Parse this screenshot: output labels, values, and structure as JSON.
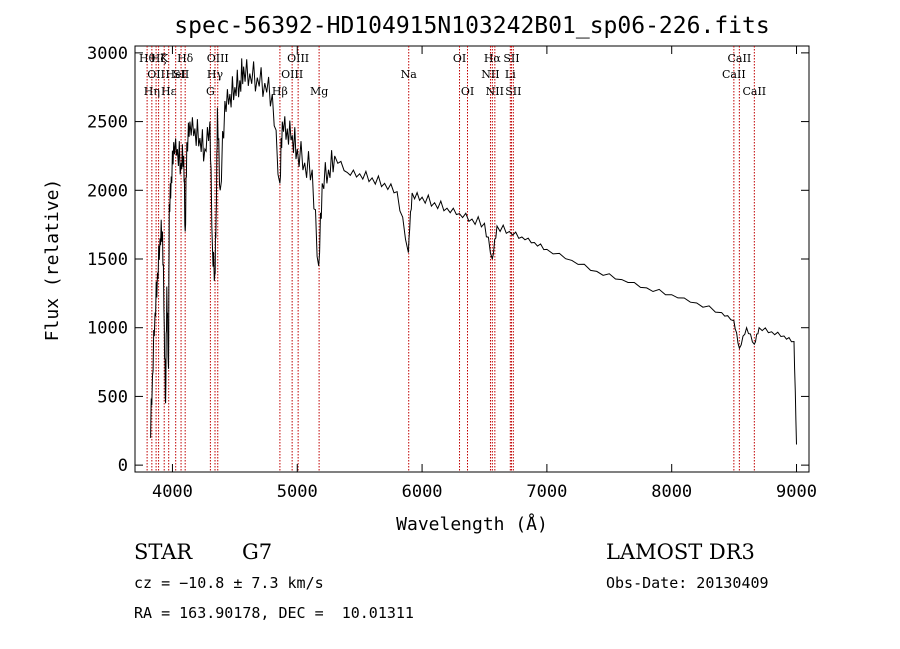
{
  "chart_data": {
    "type": "line",
    "title": "spec-56392-HD104915N103242B01_sp06-226.fits",
    "xlabel": "Wavelength (Å)",
    "ylabel": "Flux (relative)",
    "xlim": [
      3700,
      9100
    ],
    "ylim": [
      -50,
      3050
    ],
    "xticks": [
      4000,
      5000,
      6000,
      7000,
      8000,
      9000
    ],
    "yticks": [
      0,
      500,
      1000,
      1500,
      2000,
      2500,
      3000
    ],
    "series": [
      {
        "name": "spectrum",
        "x": [
          3820,
          3840,
          3860,
          3880,
          3900,
          3920,
          3935,
          3945,
          3955,
          3968,
          3975,
          3990,
          4010,
          4040,
          4070,
          4090,
          4102,
          4115,
          4140,
          4180,
          4220,
          4260,
          4300,
          4320,
          4340,
          4350,
          4360,
          4383,
          4420,
          4460,
          4500,
          4540,
          4570,
          4620,
          4680,
          4740,
          4800,
          4861,
          4880,
          4920,
          4960,
          5000,
          5060,
          5120,
          5172,
          5200,
          5250,
          5300,
          5400,
          5500,
          5600,
          5700,
          5800,
          5890,
          5895,
          5920,
          6000,
          6100,
          6200,
          6300,
          6400,
          6500,
          6563,
          6600,
          6700,
          6800,
          6900,
          7000,
          7200,
          7400,
          7600,
          7800,
          8000,
          8200,
          8400,
          8498,
          8542,
          8600,
          8662,
          8700,
          8800,
          8900,
          8980,
          9000
        ],
        "y": [
          200,
          650,
          1100,
          1400,
          1650,
          1700,
          1000,
          450,
          1300,
          700,
          1900,
          2100,
          2350,
          2300,
          2200,
          2250,
          1700,
          2350,
          2500,
          2450,
          2380,
          2300,
          2500,
          1600,
          1400,
          1800,
          2600,
          2000,
          2650,
          2700,
          2750,
          2800,
          2900,
          2850,
          2820,
          2780,
          2700,
          2050,
          2500,
          2450,
          2400,
          2300,
          2200,
          2150,
          1450,
          2050,
          2150,
          2250,
          2130,
          2120,
          2090,
          2050,
          1990,
          1550,
          1650,
          1980,
          1950,
          1910,
          1870,
          1830,
          1790,
          1760,
          1500,
          1740,
          1700,
          1660,
          1620,
          1570,
          1490,
          1410,
          1350,
          1290,
          1240,
          1180,
          1110,
          1050,
          850,
          1000,
          880,
          1000,
          970,
          940,
          900,
          150
        ]
      }
    ],
    "lines": [
      {
        "wl": 3797,
        "label": "Hθ",
        "row": 0
      },
      {
        "wl": 3835,
        "label": "Hη",
        "row": 2
      },
      {
        "wl": 3869,
        "label": "OII",
        "row": 1
      },
      {
        "wl": 3889,
        "label": "Hζ",
        "row": 0
      },
      {
        "wl": 3934,
        "label": "K",
        "row": 0
      },
      {
        "wl": 3970,
        "label": "Hε",
        "row": 2
      },
      {
        "wl": 4026,
        "label": "HeI",
        "row": 1
      },
      {
        "wl": 4069,
        "label": "SII",
        "row": 1
      },
      {
        "wl": 4102,
        "label": "Hδ",
        "row": 0
      },
      {
        "wl": 4304,
        "label": "G",
        "row": 2
      },
      {
        "wl": 4341,
        "label": "Hγ",
        "row": 1
      },
      {
        "wl": 4363,
        "label": "OIII",
        "row": 0
      },
      {
        "wl": 4861,
        "label": "Hβ",
        "row": 2
      },
      {
        "wl": 4959,
        "label": "OIII",
        "row": 1
      },
      {
        "wl": 5007,
        "label": "OIII",
        "row": 0
      },
      {
        "wl": 5175,
        "label": "Mg",
        "row": 2
      },
      {
        "wl": 5893,
        "label": "Na",
        "row": 1
      },
      {
        "wl": 6300,
        "label": "OI",
        "row": 0
      },
      {
        "wl": 6364,
        "label": "OI",
        "row": 2
      },
      {
        "wl": 6548,
        "label": "NII",
        "row": 1
      },
      {
        "wl": 6563,
        "label": "Hα",
        "row": 0
      },
      {
        "wl": 6583,
        "label": "NII",
        "row": 2
      },
      {
        "wl": 6707,
        "label": "Li",
        "row": 1
      },
      {
        "wl": 6716,
        "label": "SII",
        "row": 0
      },
      {
        "wl": 6731,
        "label": "SII",
        "row": 2
      },
      {
        "wl": 8498,
        "label": "CaII",
        "row": 1
      },
      {
        "wl": 8542,
        "label": "CaII",
        "row": 0
      },
      {
        "wl": 8662,
        "label": "CaII",
        "row": 2
      }
    ],
    "line_color": "#c00000"
  },
  "info": {
    "object_class": "STAR",
    "subclass": "G7",
    "survey": "LAMOST DR3",
    "cz": "cz = −10.8 ± 7.3 km/s",
    "obs_date": "Obs-Date: 20130409",
    "coords": "RA = 163.90178, DEC =  10.01311"
  }
}
